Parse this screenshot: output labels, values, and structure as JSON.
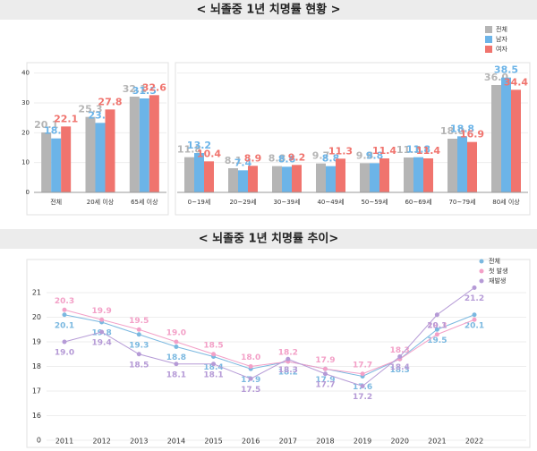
{
  "chart_data": [
    {
      "type": "bar",
      "title": "< 뇌졸중 1년 치명률 현황 >",
      "categories": [
        "전체",
        "20세 이상",
        "65세 이상",
        "0~19세",
        "20~29세",
        "30~39세",
        "40~49세",
        "50~59세",
        "60~69세",
        "70~79세",
        "80세 이상"
      ],
      "series": [
        {
          "name": "전체",
          "color": "#b5b5b5",
          "values": [
            20.1,
            25.3,
            32.1,
            11.8,
            8.1,
            8.8,
            9.7,
            9.8,
            11.7,
            18.0,
            36.0
          ],
          "value_labels": [
            "20.1",
            "25.3",
            "32.1",
            "11.8",
            "8.1",
            "8.8",
            "9.7",
            "9.8",
            "11.7",
            "18.0",
            "36.0"
          ]
        },
        {
          "name": "남자",
          "color": "#6cb4e8",
          "values": [
            18.1,
            23.3,
            31.5,
            13.2,
            7.4,
            8.6,
            8.8,
            9.8,
            11.8,
            18.8,
            38.5
          ],
          "value_labels": [
            "18.1",
            "23.3",
            "31.5",
            "13.2",
            "7.4",
            "8.6",
            "8.8",
            "9.8",
            "11.8",
            "18.8",
            "38.5"
          ]
        },
        {
          "name": "여자",
          "color": "#f0746e",
          "values": [
            22.1,
            27.8,
            32.6,
            10.4,
            8.9,
            9.2,
            11.3,
            11.4,
            11.4,
            16.9,
            34.4
          ],
          "value_labels": [
            "22.1",
            "27.8",
            "32.6",
            "10.4",
            "8.9",
            "9.2",
            "11.3",
            "11.4",
            "11.4",
            "16.9",
            "34.4"
          ]
        }
      ],
      "ylim": [
        0,
        42
      ],
      "yticks": [
        0,
        10,
        20,
        30,
        40
      ],
      "grid": true,
      "legend": "top-right"
    },
    {
      "type": "line",
      "title": "< 뇌졸중 1년 치명률 추이>",
      "x": [
        "2011",
        "2012",
        "2013",
        "2014",
        "2015",
        "2016",
        "2017",
        "2018",
        "2019",
        "2020",
        "2021",
        "2022"
      ],
      "series": [
        {
          "name": "전체",
          "color": "#7ab8e0",
          "values": [
            20.1,
            19.8,
            19.3,
            18.8,
            18.4,
            17.9,
            18.2,
            17.9,
            17.6,
            18.3,
            19.5,
            20.1
          ],
          "value_labels": [
            "20.1",
            "19.8",
            "19.3",
            "18.8",
            "18.4",
            "17.9",
            "18.2",
            "17.9",
            "17.6",
            "18.3",
            "19.5",
            "20.1"
          ]
        },
        {
          "name": "첫 발생",
          "color": "#f3a0c7",
          "values": [
            20.3,
            19.9,
            19.5,
            19.0,
            18.5,
            18.0,
            18.2,
            17.9,
            17.7,
            18.3,
            19.3,
            19.9
          ],
          "value_labels": [
            "20.3",
            "19.9",
            "19.5",
            "19.0",
            "18.5",
            "18.0",
            "18.2",
            "17.9",
            "17.7",
            "18.3",
            "19.3",
            null
          ]
        },
        {
          "name": "재발생",
          "color": "#b59ad6",
          "values": [
            19.0,
            19.4,
            18.5,
            18.1,
            18.1,
            17.5,
            18.3,
            17.7,
            17.2,
            18.4,
            20.1,
            21.2
          ],
          "value_labels": [
            "19.0",
            "19.4",
            "18.5",
            "18.1",
            "18.1",
            "17.5",
            "18.3",
            "17.7",
            "17.2",
            "18.4",
            "20.1",
            "21.2"
          ]
        }
      ],
      "ylim": [
        0,
        21.5
      ],
      "yticks": [
        0,
        16,
        17,
        18,
        19,
        20,
        21
      ],
      "grid": true,
      "legend": "top-right"
    }
  ]
}
